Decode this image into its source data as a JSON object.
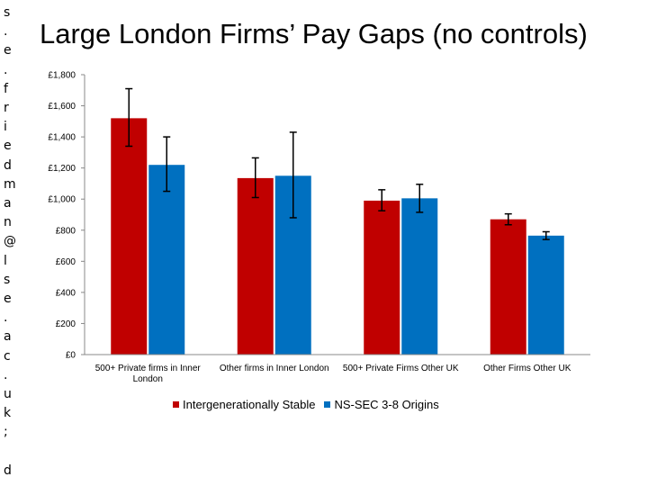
{
  "side_text": [
    "s",
    ".",
    "e",
    ".",
    "f",
    "r",
    "i",
    "e",
    "d",
    "m",
    "a",
    "n",
    "@",
    "l",
    "s",
    "e",
    ".",
    "a",
    "c",
    ".",
    "u",
    "k",
    ";",
    "",
    "d"
  ],
  "colors": {
    "stable": "#c00000",
    "nssec": "#0070c0"
  },
  "chart_data": {
    "type": "bar",
    "title": "Large London Firms’ Pay Gaps (no controls)",
    "categories": [
      [
        "500+ Private firms in Inner",
        "London"
      ],
      [
        "Other firms in Inner London"
      ],
      [
        "500+ Private Firms Other UK"
      ],
      [
        "Other Firms Other UK"
      ]
    ],
    "y_ticks": [
      "£0",
      "£200",
      "£400",
      "£600",
      "£800",
      "£1,000",
      "£1,200",
      "£1,400",
      "£1,600",
      "£1,800"
    ],
    "ylim": [
      0,
      1800
    ],
    "series": [
      {
        "name": "Intergenerationally Stable",
        "color": "#c00000",
        "values": [
          1520,
          1135,
          990,
          870
        ],
        "errors": [
          [
            1340,
            1710
          ],
          [
            1010,
            1265
          ],
          [
            925,
            1060
          ],
          [
            835,
            905
          ]
        ]
      },
      {
        "name": "NS-SEC 3-8 Origins",
        "color": "#0070c0",
        "values": [
          1220,
          1150,
          1005,
          765
        ],
        "errors": [
          [
            1050,
            1400
          ],
          [
            880,
            1430
          ],
          [
            915,
            1095
          ],
          [
            740,
            790
          ]
        ]
      }
    ],
    "legend_position": "bottom"
  }
}
